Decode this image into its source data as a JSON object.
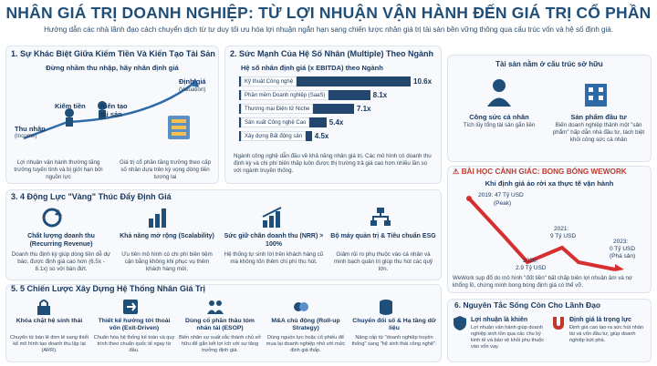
{
  "header": {
    "title": "NHÂN GIÁ TRỊ DOANH NGHIỆP: TỪ LỢI NHUẬN VẬN HÀNH ĐẾN GIÁ TRỊ CỔ PHẦN",
    "subtitle": "Hướng dẫn các nhà lãnh đạo cách chuyển dịch từ tư duy tối ưu hóa lợi nhuận ngắn hạn sang chiến lược nhân giá trị tài sản bền vững thông qua cấu trúc vốn và hệ số định giá."
  },
  "colors": {
    "navy": "#1f4e79",
    "red": "#c0392b",
    "bar": "#23466f",
    "accent": "#f0c24a"
  },
  "s1": {
    "heading": "1. Sự Khác Biệt Giữa Kiếm Tiền Và Kiến Tạo Tài Sản",
    "tagline": "Đừng nhầm thu nhập, hãy nhân định giá",
    "thu_nhap": "Thu nhập",
    "income": "(Income)",
    "kiem_tien": "Kiếm tiền",
    "kien_tao": "Kiến tạo tài sản",
    "dinh_gia": "Định giá",
    "valuation": "(Valuation)",
    "left_desc": "Lợi nhuận vận hành thường tăng trưởng tuyến tính và bị giới hạn bởi nguồn lực",
    "right_desc": "Giá trị cổ phần tăng trưởng theo cấp số nhân dựa trên kỳ vọng dòng tiền tương lai"
  },
  "s2": {
    "heading": "2. Sức Mạnh Của Hệ Số Nhân (Multiple) Theo Ngành",
    "chart_title": "Hệ số nhân định giá (x EBITDA) theo Ngành",
    "note": "Ngành công nghệ dẫn đầu về khả năng nhân giá trị. Các mô hình có doanh thu định kỳ và chi phí biên thấp luôn được thị trường trả giá cao hơn nhiều lần so với ngành truyền thống."
  },
  "chart_data": {
    "type": "bar",
    "title": "Hệ số nhân định giá (x EBITDA) theo Ngành",
    "categories": [
      "Kỹ thuật Công nghệ",
      "Phần mềm Doanh nghiệp (SaaS)",
      "Thương mại Điện tử Niche",
      "Sản xuất Công nghệ Cao",
      "Xây dựng Bất động sản"
    ],
    "values": [
      10.6,
      8.1,
      7.1,
      5.4,
      4.5
    ],
    "labels": [
      "10.6x",
      "8.1x",
      "7.1x",
      "5.4x",
      "4.5x"
    ],
    "xlim": [
      0,
      10.6
    ]
  },
  "s_right": {
    "heading": "Tài sản nằm ở cấu trúc sở hữu",
    "left_title": "Công sức cá nhân",
    "left_desc": "Tích lũy tổng tài sản gắn liền",
    "right_title": "Sản phẩm đầu tư",
    "right_desc": "Biến doanh nghiệp thành một \"sản phẩm\" hấp dẫn nhà đầu tư, tách biệt khỏi công sức cá nhân"
  },
  "warn": {
    "heading": "⚠ BÀI HỌC CẢNH GIÁC: BONG BÓNG WEWORK",
    "sub": "Khi định giá ảo rời xa thực tế vận hành",
    "p2019": "2019: 47 Tỷ USD",
    "p2019b": "(Peak)",
    "p2021": "2021:",
    "p2021b": "9 Tỷ USD",
    "p2020": "2020:",
    "p2020b": "2.9 Tỷ USD",
    "p2023": "2023:",
    "p2023b": "0 Tỷ USD",
    "p2023c": "(Phá sản)",
    "desc": "WeWork sụp đổ do mô hình \"đốt tiền\" bất chấp biên lợi nhuận âm và nợ khổng lồ, chứng minh bong bóng định giá có thể vỡ."
  },
  "s3": {
    "heading": "3. 4 Động Lực \"Vàng\" Thúc Đẩy Định Giá",
    "items": [
      {
        "title": "Chất lượng doanh thu (Recurring Revenue)",
        "desc": "Doanh thu định kỳ giúp dòng tiền dễ dự báo, được định giá cao hơn (6.5x - 8.1x) so với bán đứt."
      },
      {
        "title": "Khả năng mở rộng (Scalability)",
        "desc": "Ưu tiên mô hình có chi phí biên tiệm cận bằng không khi phục vụ thêm khách hàng mới."
      },
      {
        "title": "Sức giữ chân doanh thu (NRR) > 100%",
        "desc": "Hệ thống tự sinh lời trên khách hàng cũ mà không tốn thêm chi phí thu hút."
      },
      {
        "title": "Bộ máy quản trị & Tiêu chuẩn ESG",
        "desc": "Giảm rủi ro phụ thuộc vào cá nhân và minh bạch quản trị giúp thu hút các quỹ lớn."
      }
    ]
  },
  "s5": {
    "heading": "5. 5 Chiến Lược Xây Dựng Hệ Thống Nhân Giá Trị",
    "items": [
      {
        "title": "Khóa chặt hệ sinh thái",
        "desc": "Chuyển từ bán lẻ đơn lẻ sang thiết kế mô hình tạo doanh thu lặp lại (ARR)."
      },
      {
        "title": "Thiết kế hướng tới thoái vốn (Exit-Driven)",
        "desc": "Chuẩn hóa hệ thống kế toán và quy trình theo chuẩn quốc tế ngay từ đầu."
      },
      {
        "title": "Dùng cổ phần thâu tóm nhân tài (ESOP)",
        "desc": "Biến nhân sự xuất sắc thành chủ sở hữu để gắn kết lợi ích với sự tăng trưởng định giá."
      },
      {
        "title": "M&A chủ động (Roll-up Strategy)",
        "desc": "Dùng nguồn lực hoặc cổ phiếu để mua lại doanh nghiệp nhỏ với mức định giá thấp."
      },
      {
        "title": "Chuyển đổi số & Hạ tầng dữ liệu",
        "desc": "Nâng cấp từ \"doanh nghiệp truyền thống\" sang \"hệ sinh thái công nghệ\"."
      }
    ]
  },
  "s6": {
    "heading": "6. Nguyên Tắc Sống Còn Cho Lãnh Đạo",
    "left_title": "Lợi nhuận là khiên",
    "left_desc": "Lợi nhuận vận hành giúp doanh nghiệp sinh tồn qua các chu kỳ kinh tế và bảo vệ khỏi phụ thuộc vào vốn vay.",
    "right_title": "Định giá là trọng lực",
    "right_desc": "Định giá cao tạo ra sức hút nhân tài và vốn đầu tư, giúp doanh nghiệp bứt phá."
  }
}
